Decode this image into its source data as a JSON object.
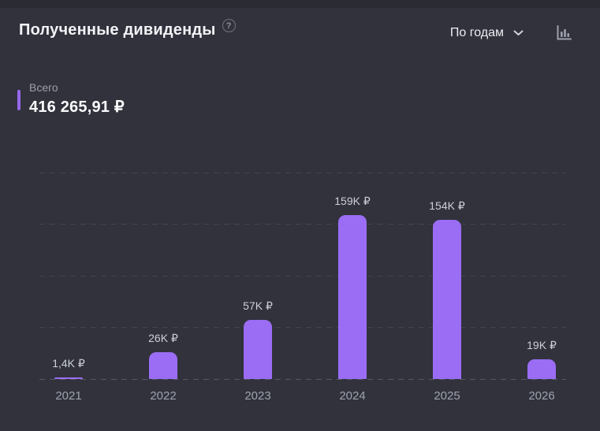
{
  "header": {
    "title": "Полученные дивиденды",
    "help_icon": "question-circle-icon",
    "group_select": {
      "value": "По годам"
    },
    "chart_type_icon": "bar-chart-icon"
  },
  "total": {
    "label": "Всего",
    "value": "416 265,91 ₽"
  },
  "chart_data": {
    "type": "bar",
    "title": "Полученные дивиденды",
    "categories": [
      "2021",
      "2022",
      "2023",
      "2024",
      "2025",
      "2026"
    ],
    "values": [
      1400,
      26000,
      57000,
      159000,
      154000,
      19000
    ],
    "value_labels": [
      "1,4K ₽",
      "26K ₽",
      "57K ₽",
      "159K ₽",
      "154K ₽",
      "19K ₽"
    ],
    "currency": "₽",
    "xlabel": "",
    "ylabel": "",
    "ylim": [
      0,
      200000
    ],
    "gridline_step": 50000,
    "grid": true,
    "legend": false,
    "bar_color": "#9b6df4"
  },
  "colors": {
    "background": "#31323c",
    "page_background": "#2a2b33",
    "accent": "#9668ec",
    "bar": "#9b6df4",
    "title_text": "#f2f3f6",
    "muted_text": "#9b9fa9"
  }
}
